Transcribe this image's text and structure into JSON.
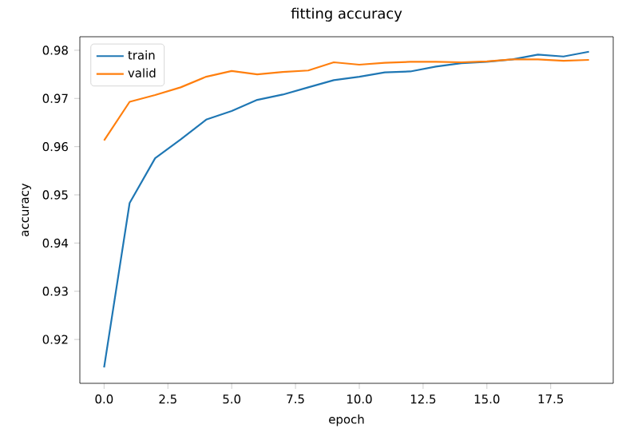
{
  "chart_data": {
    "type": "line",
    "title": "fitting accuracy",
    "xlabel": "epoch",
    "ylabel": "accuracy",
    "x": [
      0,
      1,
      2,
      3,
      4,
      5,
      6,
      7,
      8,
      9,
      10,
      11,
      12,
      13,
      14,
      15,
      16,
      17,
      18,
      19
    ],
    "series": [
      {
        "name": "train",
        "color": "#1f77b4",
        "values": [
          0.9142,
          0.9483,
          0.9576,
          0.9615,
          0.9656,
          0.9674,
          0.9697,
          0.9708,
          0.9723,
          0.9738,
          0.9745,
          0.9754,
          0.9756,
          0.9766,
          0.9773,
          0.9776,
          0.9781,
          0.9791,
          0.9787,
          0.9797
        ]
      },
      {
        "name": "valid",
        "color": "#ff7f0e",
        "values": [
          0.9613,
          0.9693,
          0.9707,
          0.9723,
          0.9745,
          0.9757,
          0.975,
          0.9755,
          0.9758,
          0.9775,
          0.977,
          0.9774,
          0.9776,
          0.9776,
          0.9775,
          0.9777,
          0.9781,
          0.9781,
          0.9778,
          0.978
        ]
      }
    ],
    "xlim": [
      -0.95,
      19.95
    ],
    "ylim": [
      0.9109,
      0.9828
    ],
    "xticks": [
      {
        "value": 0,
        "label": "0.0"
      },
      {
        "value": 2.5,
        "label": "2.5"
      },
      {
        "value": 5,
        "label": "5.0"
      },
      {
        "value": 7.5,
        "label": "7.5"
      },
      {
        "value": 10,
        "label": "10.0"
      },
      {
        "value": 12.5,
        "label": "12.5"
      },
      {
        "value": 15,
        "label": "15.0"
      },
      {
        "value": 17.5,
        "label": "17.5"
      }
    ],
    "yticks": [
      0.92,
      0.93,
      0.94,
      0.95,
      0.96,
      0.97,
      0.98
    ],
    "legend": "top left",
    "marker": "none",
    "line_style": "solid"
  }
}
